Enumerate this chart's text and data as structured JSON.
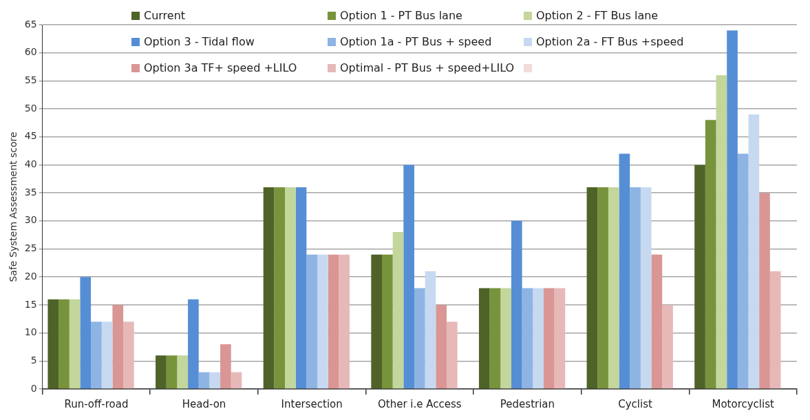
{
  "chart_data": {
    "type": "bar",
    "ylabel": "Safe System Assessment score",
    "categories": [
      "Run-off-road",
      "Head-on",
      "Intersection",
      "Other i.e Access",
      "Pedestrian",
      "Cyclist",
      "Motorcyclist"
    ],
    "series": [
      {
        "name": "Current",
        "color": "#4f6228",
        "values": [
          16,
          6,
          36,
          24,
          18,
          36,
          40
        ]
      },
      {
        "name": "Option 1 - PT Bus lane",
        "color": "#77933c",
        "values": [
          16,
          6,
          36,
          24,
          18,
          36,
          48
        ]
      },
      {
        "name": "Option 2 - FT Bus lane",
        "color": "#c3d69b",
        "values": [
          16,
          6,
          36,
          28,
          18,
          36,
          56
        ]
      },
      {
        "name": "Option 3 - Tidal flow",
        "color": "#558ed5",
        "values": [
          20,
          16,
          36,
          40,
          30,
          42,
          64
        ]
      },
      {
        "name": "Option 1a - PT Bus + speed",
        "color": "#8eb4e3",
        "values": [
          12,
          3,
          24,
          18,
          18,
          36,
          42
        ]
      },
      {
        "name": "Option 2a - FT Bus +speed",
        "color": "#c6d9f1",
        "values": [
          12,
          3,
          24,
          21,
          18,
          36,
          49
        ]
      },
      {
        "name": "Option 3a TF+ speed +LILO",
        "color": "#d99694",
        "values": [
          15,
          8,
          24,
          15,
          18,
          24,
          35
        ]
      },
      {
        "name": "Optimal - PT Bus + speed+LILO",
        "color": "#e6b9b8",
        "values": [
          12,
          3,
          24,
          12,
          18,
          15,
          21
        ]
      },
      {
        "color": "#f2dcdb",
        "values": [
          null,
          null,
          null,
          null,
          null,
          null,
          null
        ]
      }
    ],
    "ylim": [
      0,
      65
    ],
    "yticks": [
      0,
      5,
      10,
      15,
      20,
      25,
      30,
      35,
      40,
      45,
      50,
      55,
      60,
      65
    ],
    "grid": "y",
    "legend": "top"
  }
}
